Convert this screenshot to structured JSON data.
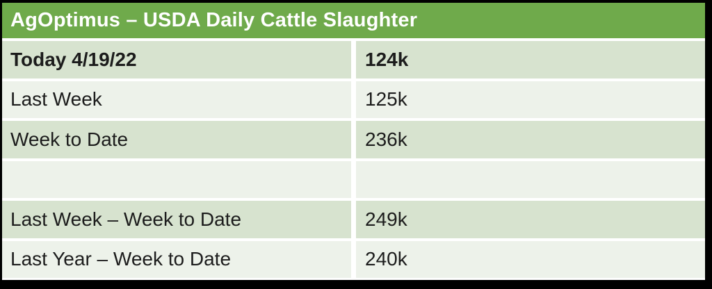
{
  "header": {
    "title": "AgOptimus – USDA Daily Cattle Slaughter"
  },
  "table": {
    "rows": [
      {
        "label": "Today 4/19/22",
        "value": "124k"
      },
      {
        "label": "Last Week",
        "value": "125k"
      },
      {
        "label": "Week to Date",
        "value": "236k"
      },
      {
        "label": "",
        "value": ""
      },
      {
        "label": "Last Week – Week to Date",
        "value": "249k"
      },
      {
        "label": "Last Year – Week to Date",
        "value": "240k"
      }
    ]
  },
  "colors": {
    "header_green": "#6faa4b",
    "band_dark": "#d7e3cf",
    "band_light": "#edf2ea",
    "header_text": "#ffffff",
    "body_text": "#1c1c1c",
    "frame_black": "#000000"
  }
}
